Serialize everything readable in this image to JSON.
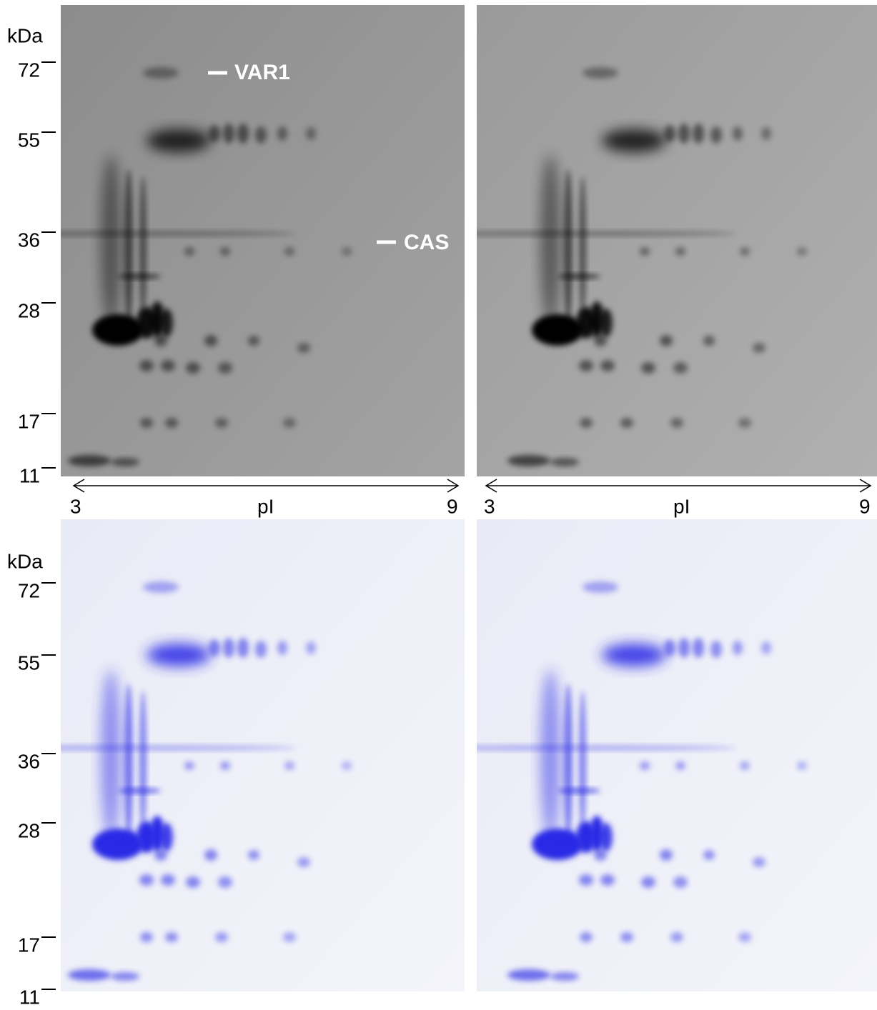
{
  "kda_label": "kDa",
  "markers": [
    "72",
    "55",
    "36",
    "28",
    "17",
    "11"
  ],
  "annotations": {
    "var1": "VAR1",
    "cas": "CAS"
  },
  "pi_axis": {
    "label": "pI",
    "min": "3",
    "max": "9"
  }
}
